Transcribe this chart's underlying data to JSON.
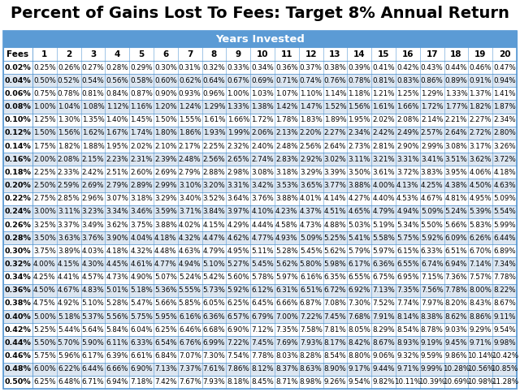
{
  "title": "Percent of Gains Lost To Fees: Target 8% Annual Return",
  "subtitle": "Years Invested",
  "header_color": "#5b9bd5",
  "header_text_color": "#ffffff",
  "cell_bg_even": "#ffffff",
  "cell_bg_odd": "#dce6f1",
  "border_color": "#5b9bd5",
  "table_data": [
    [
      "0.25%",
      "0.26%",
      "0.27%",
      "0.28%",
      "0.29%",
      "0.30%",
      "0.31%",
      "0.32%",
      "0.33%",
      "0.34%",
      "0.36%",
      "0.37%",
      "0.38%",
      "0.39%",
      "0.41%",
      "0.42%",
      "0.43%",
      "0.44%",
      "0.46%",
      "0.47%"
    ],
    [
      "0.50%",
      "0.52%",
      "0.54%",
      "0.56%",
      "0.58%",
      "0.60%",
      "0.62%",
      "0.64%",
      "0.67%",
      "0.69%",
      "0.71%",
      "0.74%",
      "0.76%",
      "0.78%",
      "0.81%",
      "0.83%",
      "0.86%",
      "0.89%",
      "0.91%",
      "0.94%"
    ],
    [
      "0.75%",
      "0.78%",
      "0.81%",
      "0.84%",
      "0.87%",
      "0.90%",
      "0.93%",
      "0.96%",
      "1.00%",
      "1.03%",
      "1.07%",
      "1.10%",
      "1.14%",
      "1.18%",
      "1.21%",
      "1.25%",
      "1.29%",
      "1.33%",
      "1.37%",
      "1.41%"
    ],
    [
      "1.00%",
      "1.04%",
      "1.08%",
      "1.12%",
      "1.16%",
      "1.20%",
      "1.24%",
      "1.29%",
      "1.33%",
      "1.38%",
      "1.42%",
      "1.47%",
      "1.52%",
      "1.56%",
      "1.61%",
      "1.66%",
      "1.72%",
      "1.77%",
      "1.82%",
      "1.87%"
    ],
    [
      "1.25%",
      "1.30%",
      "1.35%",
      "1.40%",
      "1.45%",
      "1.50%",
      "1.55%",
      "1.61%",
      "1.66%",
      "1.72%",
      "1.78%",
      "1.83%",
      "1.89%",
      "1.95%",
      "2.02%",
      "2.08%",
      "2.14%",
      "2.21%",
      "2.27%",
      "2.34%"
    ],
    [
      "1.50%",
      "1.56%",
      "1.62%",
      "1.67%",
      "1.74%",
      "1.80%",
      "1.86%",
      "1.93%",
      "1.99%",
      "2.06%",
      "2.13%",
      "2.20%",
      "2.27%",
      "2.34%",
      "2.42%",
      "2.49%",
      "2.57%",
      "2.64%",
      "2.72%",
      "2.80%"
    ],
    [
      "1.75%",
      "1.82%",
      "1.88%",
      "1.95%",
      "2.02%",
      "2.10%",
      "2.17%",
      "2.25%",
      "2.32%",
      "2.40%",
      "2.48%",
      "2.56%",
      "2.64%",
      "2.73%",
      "2.81%",
      "2.90%",
      "2.99%",
      "3.08%",
      "3.17%",
      "3.26%"
    ],
    [
      "2.00%",
      "2.08%",
      "2.15%",
      "2.23%",
      "2.31%",
      "2.39%",
      "2.48%",
      "2.56%",
      "2.65%",
      "2.74%",
      "2.83%",
      "2.92%",
      "3.02%",
      "3.11%",
      "3.21%",
      "3.31%",
      "3.41%",
      "3.51%",
      "3.62%",
      "3.72%"
    ],
    [
      "2.25%",
      "2.33%",
      "2.42%",
      "2.51%",
      "2.60%",
      "2.69%",
      "2.79%",
      "2.88%",
      "2.98%",
      "3.08%",
      "3.18%",
      "3.29%",
      "3.39%",
      "3.50%",
      "3.61%",
      "3.72%",
      "3.83%",
      "3.95%",
      "4.06%",
      "4.18%"
    ],
    [
      "2.50%",
      "2.59%",
      "2.69%",
      "2.79%",
      "2.89%",
      "2.99%",
      "3.10%",
      "3.20%",
      "3.31%",
      "3.42%",
      "3.53%",
      "3.65%",
      "3.77%",
      "3.88%",
      "4.00%",
      "4.13%",
      "4.25%",
      "4.38%",
      "4.50%",
      "4.63%"
    ],
    [
      "2.75%",
      "2.85%",
      "2.96%",
      "3.07%",
      "3.18%",
      "3.29%",
      "3.40%",
      "3.52%",
      "3.64%",
      "3.76%",
      "3.88%",
      "4.01%",
      "4.14%",
      "4.27%",
      "4.40%",
      "4.53%",
      "4.67%",
      "4.81%",
      "4.95%",
      "5.09%"
    ],
    [
      "3.00%",
      "3.11%",
      "3.23%",
      "3.34%",
      "3.46%",
      "3.59%",
      "3.71%",
      "3.84%",
      "3.97%",
      "4.10%",
      "4.23%",
      "4.37%",
      "4.51%",
      "4.65%",
      "4.79%",
      "4.94%",
      "5.09%",
      "5.24%",
      "5.39%",
      "5.54%"
    ],
    [
      "3.25%",
      "3.37%",
      "3.49%",
      "3.62%",
      "3.75%",
      "3.88%",
      "4.02%",
      "4.15%",
      "4.29%",
      "4.44%",
      "4.58%",
      "4.73%",
      "4.88%",
      "5.03%",
      "5.19%",
      "5.34%",
      "5.50%",
      "5.66%",
      "5.83%",
      "5.99%"
    ],
    [
      "3.50%",
      "3.63%",
      "3.76%",
      "3.90%",
      "4.04%",
      "4.18%",
      "4.32%",
      "4.47%",
      "4.62%",
      "4.77%",
      "4.93%",
      "5.09%",
      "5.25%",
      "5.41%",
      "5.58%",
      "5.75%",
      "5.92%",
      "6.09%",
      "6.26%",
      "6.44%"
    ],
    [
      "3.75%",
      "3.89%",
      "4.03%",
      "4.18%",
      "4.32%",
      "4.48%",
      "4.63%",
      "4.79%",
      "4.95%",
      "5.11%",
      "5.28%",
      "5.45%",
      "5.62%",
      "5.79%",
      "5.97%",
      "6.15%",
      "6.33%",
      "6.51%",
      "6.70%",
      "6.89%"
    ],
    [
      "4.00%",
      "4.15%",
      "4.30%",
      "4.45%",
      "4.61%",
      "4.77%",
      "4.94%",
      "5.10%",
      "5.27%",
      "5.45%",
      "5.62%",
      "5.80%",
      "5.98%",
      "6.17%",
      "6.36%",
      "6.55%",
      "6.74%",
      "6.94%",
      "7.14%",
      "7.34%"
    ],
    [
      "4.25%",
      "4.41%",
      "4.57%",
      "4.73%",
      "4.90%",
      "5.07%",
      "5.24%",
      "5.42%",
      "5.60%",
      "5.78%",
      "5.97%",
      "6.16%",
      "6.35%",
      "6.55%",
      "6.75%",
      "6.95%",
      "7.15%",
      "7.36%",
      "7.57%",
      "7.78%"
    ],
    [
      "4.50%",
      "4.67%",
      "4.83%",
      "5.01%",
      "5.18%",
      "5.36%",
      "5.55%",
      "5.73%",
      "5.92%",
      "6.12%",
      "6.31%",
      "6.51%",
      "6.72%",
      "6.92%",
      "7.13%",
      "7.35%",
      "7.56%",
      "7.78%",
      "8.00%",
      "8.22%"
    ],
    [
      "4.75%",
      "4.92%",
      "5.10%",
      "5.28%",
      "5.47%",
      "5.66%",
      "5.85%",
      "6.05%",
      "6.25%",
      "6.45%",
      "6.66%",
      "6.87%",
      "7.08%",
      "7.30%",
      "7.52%",
      "7.74%",
      "7.97%",
      "8.20%",
      "8.43%",
      "8.67%"
    ],
    [
      "5.00%",
      "5.18%",
      "5.37%",
      "5.56%",
      "5.75%",
      "5.95%",
      "6.16%",
      "6.36%",
      "6.57%",
      "6.79%",
      "7.00%",
      "7.22%",
      "7.45%",
      "7.68%",
      "7.91%",
      "8.14%",
      "8.38%",
      "8.62%",
      "8.86%",
      "9.11%"
    ],
    [
      "5.25%",
      "5.44%",
      "5.64%",
      "5.84%",
      "6.04%",
      "6.25%",
      "6.46%",
      "6.68%",
      "6.90%",
      "7.12%",
      "7.35%",
      "7.58%",
      "7.81%",
      "8.05%",
      "8.29%",
      "8.54%",
      "8.78%",
      "9.03%",
      "9.29%",
      "9.54%"
    ],
    [
      "5.50%",
      "5.70%",
      "5.90%",
      "6.11%",
      "6.33%",
      "6.54%",
      "6.76%",
      "6.99%",
      "7.22%",
      "7.45%",
      "7.69%",
      "7.93%",
      "8.17%",
      "8.42%",
      "8.67%",
      "8.93%",
      "9.19%",
      "9.45%",
      "9.71%",
      "9.98%"
    ],
    [
      "5.75%",
      "5.96%",
      "6.17%",
      "6.39%",
      "6.61%",
      "6.84%",
      "7.07%",
      "7.30%",
      "7.54%",
      "7.78%",
      "8.03%",
      "8.28%",
      "8.54%",
      "8.80%",
      "9.06%",
      "9.32%",
      "9.59%",
      "9.86%",
      "10.14%",
      "10.42%"
    ],
    [
      "6.00%",
      "6.22%",
      "6.44%",
      "6.66%",
      "6.90%",
      "7.13%",
      "7.37%",
      "7.61%",
      "7.86%",
      "8.12%",
      "8.37%",
      "8.63%",
      "8.90%",
      "9.17%",
      "9.44%",
      "9.71%",
      "9.99%",
      "10.28%",
      "10.56%",
      "10.85%"
    ],
    [
      "6.25%",
      "6.48%",
      "6.71%",
      "6.94%",
      "7.18%",
      "7.42%",
      "7.67%",
      "7.93%",
      "8.18%",
      "8.45%",
      "8.71%",
      "8.98%",
      "9.26%",
      "9.54%",
      "9.82%",
      "10.11%",
      "10.39%",
      "10.69%",
      "10.98%",
      "11.28%"
    ]
  ],
  "fees_labels": [
    "0.02%",
    "0.04%",
    "0.06%",
    "0.08%",
    "0.10%",
    "0.12%",
    "0.14%",
    "0.16%",
    "0.18%",
    "0.20%",
    "0.22%",
    "0.24%",
    "0.26%",
    "0.28%",
    "0.30%",
    "0.32%",
    "0.34%",
    "0.36%",
    "0.38%",
    "0.40%",
    "0.42%",
    "0.44%",
    "0.46%",
    "0.48%",
    "0.50%"
  ],
  "col_headers": [
    "Fees",
    "1",
    "2",
    "3",
    "4",
    "5",
    "6",
    "7",
    "8",
    "9",
    "10",
    "11",
    "12",
    "13",
    "14",
    "15",
    "16",
    "17",
    "18",
    "19",
    "20"
  ],
  "title_fontsize": 14,
  "subtitle_fontsize": 9.5,
  "col_header_fontsize": 7.5,
  "data_fontsize": 6.3,
  "fees_fontsize": 6.8
}
